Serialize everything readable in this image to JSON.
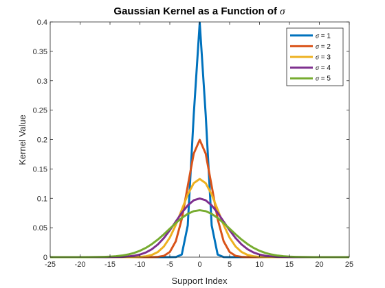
{
  "chart_data": {
    "type": "line",
    "title": "Gaussian Kernel as a Function of ",
    "title_symbol": "σ",
    "xlabel": "Support Index",
    "ylabel": "Kernel Value",
    "xlim": [
      -25,
      25
    ],
    "ylim": [
      0,
      0.4
    ],
    "xticks": [
      -25,
      -20,
      -15,
      -10,
      -5,
      0,
      5,
      10,
      15,
      20,
      25
    ],
    "xtick_labels": [
      "-25",
      "-20",
      "-15",
      "-10",
      "-5",
      "0",
      "5",
      "10",
      "15",
      "20",
      "25"
    ],
    "yticks": [
      0,
      0.05,
      0.1,
      0.15,
      0.2,
      0.25,
      0.3,
      0.35,
      0.4
    ],
    "ytick_labels": [
      "0",
      "0.05",
      "0.1",
      "0.15",
      "0.2",
      "0.25",
      "0.3",
      "0.35",
      "0.4"
    ],
    "grid": false,
    "legend_position": "top-right",
    "x": [
      -25,
      -24,
      -23,
      -22,
      -21,
      -20,
      -19,
      -18,
      -17,
      -16,
      -15,
      -14,
      -13,
      -12,
      -11,
      -10,
      -9,
      -8,
      -7,
      -6,
      -5,
      -4,
      -3,
      -2,
      -1,
      0,
      1,
      2,
      3,
      4,
      5,
      6,
      7,
      8,
      9,
      10,
      11,
      12,
      13,
      14,
      15,
      16,
      17,
      18,
      19,
      20,
      21,
      22,
      23,
      24,
      25
    ],
    "series": [
      {
        "name": "σ = 1",
        "sigma": 1,
        "color": "#0072BD"
      },
      {
        "name": "σ = 2",
        "sigma": 2,
        "color": "#D95319"
      },
      {
        "name": "σ = 3",
        "sigma": 3,
        "color": "#EDB120"
      },
      {
        "name": "σ = 4",
        "sigma": 4,
        "color": "#7E2F8E"
      },
      {
        "name": "σ = 5",
        "sigma": 5,
        "color": "#77AC30"
      }
    ]
  }
}
